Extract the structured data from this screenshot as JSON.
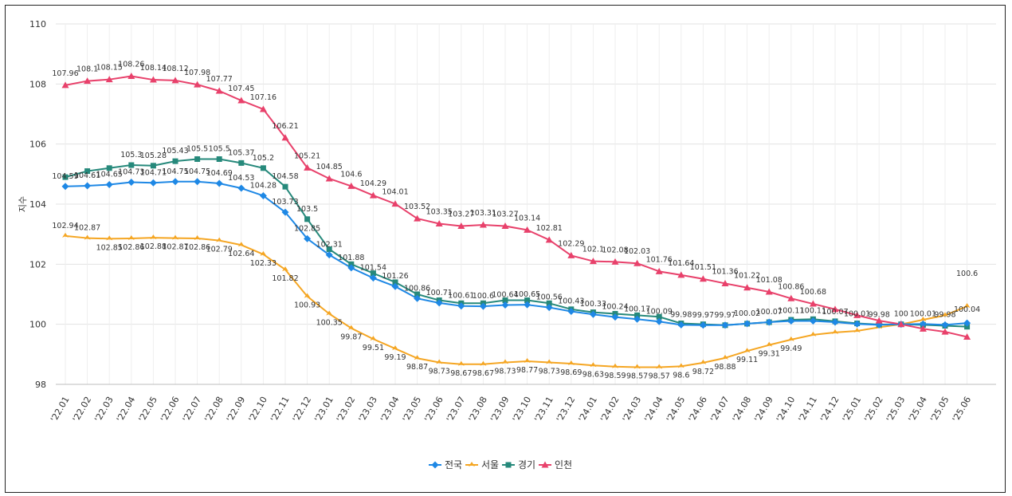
{
  "chart_data": {
    "type": "line",
    "ylabel": "지수",
    "ylim": [
      98,
      110
    ],
    "yticks": [
      98,
      100,
      102,
      104,
      106,
      108,
      110
    ],
    "grid": true,
    "legend_position": "bottom",
    "categories": [
      "'22.01",
      "'22.02",
      "'22.03",
      "'22.04",
      "'22.05",
      "'22.06",
      "'22.07",
      "'22.08",
      "'22.09",
      "'22.10",
      "'22.11",
      "'22.12",
      "'23.01",
      "'23.02",
      "'23.03",
      "'23.04",
      "'23.05",
      "'23.06",
      "'23.07",
      "'23.08",
      "'23.09",
      "'23.10",
      "'23.11",
      "'23.12",
      "'24.01",
      "'24.02",
      "'24.03",
      "'24.04",
      "'24.05",
      "'24.06",
      "'24.07",
      "'24.08",
      "'24.09",
      "'24.10",
      "'24.11",
      "'24.12",
      "'25.01",
      "'25.02",
      "'25.03",
      "'25.04",
      "'25.05",
      "'25.06"
    ],
    "series": [
      {
        "name": "전국",
        "color": "#1E88E5",
        "marker": "diamond",
        "values": [
          104.59,
          104.61,
          104.65,
          104.73,
          104.71,
          104.75,
          104.75,
          104.69,
          104.53,
          104.28,
          103.73,
          102.85,
          102.31,
          101.88,
          101.54,
          101.26,
          100.86,
          100.71,
          100.61,
          100.6,
          100.64,
          100.65,
          100.56,
          100.43,
          100.33,
          100.24,
          100.17,
          100.09,
          99.98,
          99.97,
          99.97,
          100.02,
          100.07,
          100.11,
          100.11,
          100.07,
          100.01,
          99.98,
          100,
          100.01,
          99.98,
          100.04
        ],
        "labels": [
          "104.59",
          "104.61",
          "104.65",
          "104.73",
          "104.71",
          "104.75",
          "104.75",
          "104.69",
          "104.53",
          "104.28",
          "103.73",
          "102.85",
          "102.31",
          "101.88",
          "101.54",
          "101.26",
          "100.86",
          "100.71",
          "100.61",
          "100.6",
          "100.64",
          "100.65",
          "100.56",
          "100.43",
          "100.33",
          "100.24",
          "100.17",
          "100.09",
          "99.98",
          "99.97",
          "99.97",
          "100.02",
          "100.07",
          "100.11",
          "100.11",
          "100.07",
          "100.01",
          "99.98",
          "100",
          "100.01",
          "99.98",
          "100.04"
        ]
      },
      {
        "name": "서울",
        "color": "#F5A623",
        "marker": "arrow",
        "values": [
          102.94,
          102.87,
          102.85,
          102.86,
          102.88,
          102.87,
          102.86,
          102.79,
          102.64,
          102.33,
          101.82,
          100.93,
          100.35,
          99.87,
          99.51,
          99.19,
          98.87,
          98.73,
          98.67,
          98.67,
          98.73,
          98.77,
          98.73,
          98.69,
          98.63,
          98.59,
          98.57,
          98.57,
          98.6,
          98.72,
          98.88,
          99.11,
          99.31,
          99.49,
          99.65,
          99.73,
          99.78,
          99.9,
          100,
          100.15,
          100.3,
          100.6
        ],
        "labels": [
          "102.94",
          "102.87",
          "102.85",
          "102.86",
          "102.88",
          "102.87",
          "102.86",
          "102.79",
          "102.64",
          "102.33",
          "101.82",
          "100.93",
          "100.35",
          "99.87",
          "99.51",
          "99.19",
          "98.87",
          "98.73",
          "98.67",
          "98.67",
          "98.73",
          "98.77",
          "98.73",
          "98.69",
          "98.63",
          "98.59",
          "98.57",
          "98.57",
          "98.6",
          "98.72",
          "98.88",
          "99.11",
          "99.31",
          "99.49",
          "",
          "",
          "",
          "",
          "",
          "",
          "",
          "100.6"
        ]
      },
      {
        "name": "경기",
        "color": "#26897B",
        "marker": "square",
        "values": [
          104.9,
          105.1,
          105.2,
          105.3,
          105.28,
          105.43,
          105.5,
          105.5,
          105.37,
          105.2,
          104.58,
          103.5,
          102.5,
          102.0,
          101.7,
          101.4,
          101.0,
          100.8,
          100.7,
          100.7,
          100.8,
          100.8,
          100.7,
          100.5,
          100.4,
          100.35,
          100.3,
          100.25,
          100.03,
          100.0,
          99.97,
          100.02,
          100.07,
          100.15,
          100.17,
          100.1,
          100.03,
          99.99,
          100,
          99.98,
          99.95,
          99.92
        ],
        "labels": [
          "",
          "",
          "",
          "105.3",
          "105.28",
          "105.43",
          "105.5",
          "105.5",
          "105.37",
          "105.2",
          "104.58",
          "103.5",
          "",
          "",
          "",
          "",
          "",
          "",
          "",
          "",
          "",
          "",
          "",
          "",
          "",
          "",
          "",
          "",
          "",
          "",
          "",
          "",
          "",
          "",
          "",
          "",
          "",
          "",
          "",
          "",
          "",
          ""
        ]
      },
      {
        "name": "인천",
        "color": "#E8416B",
        "marker": "triangle",
        "values": [
          107.96,
          108.1,
          108.15,
          108.26,
          108.14,
          108.12,
          107.98,
          107.77,
          107.45,
          107.16,
          106.21,
          105.21,
          104.85,
          104.6,
          104.29,
          104.01,
          103.52,
          103.35,
          103.27,
          103.31,
          103.27,
          103.14,
          102.81,
          102.29,
          102.1,
          102.08,
          102.03,
          101.76,
          101.64,
          101.51,
          101.36,
          101.22,
          101.08,
          100.86,
          100.68,
          100.5,
          100.3,
          100.12,
          100,
          99.85,
          99.75,
          99.58
        ],
        "labels": [
          "107.96",
          "108.1",
          "108.15",
          "108.26",
          "108.14",
          "108.12",
          "107.98",
          "107.77",
          "107.45",
          "107.16",
          "106.21",
          "105.21",
          "104.85",
          "104.6",
          "104.29",
          "104.01",
          "103.52",
          "103.35",
          "103.27",
          "103.31",
          "103.27",
          "103.14",
          "102.81",
          "102.29",
          "102.1",
          "102.08",
          "102.03",
          "101.76",
          "101.64",
          "101.51",
          "101.36",
          "101.22",
          "101.08",
          "100.86",
          "100.68",
          "",
          "",
          "",
          "",
          "",
          "",
          ""
        ]
      }
    ]
  }
}
